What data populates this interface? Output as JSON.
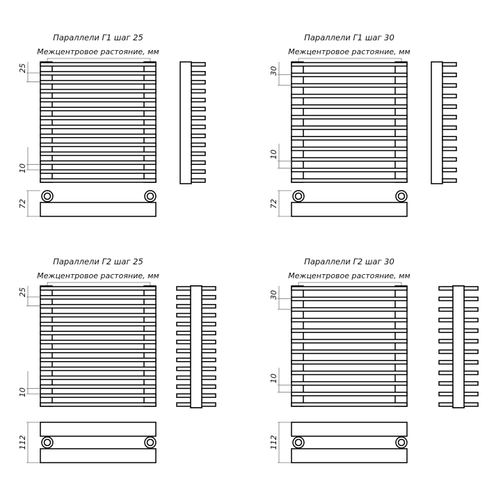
{
  "panels": [
    {
      "title": "Параллели Г1 шаг 25",
      "subtitle": "Межцентровое растояние, мм",
      "pitch": "25",
      "gap": "10",
      "depth": "72",
      "type": "G1",
      "bars": 14
    },
    {
      "title": "Параллели Г1 шаг 30",
      "subtitle": "Межцентровое растояние, мм",
      "pitch": "30",
      "gap": "10",
      "depth": "72",
      "type": "G1",
      "bars": 12
    },
    {
      "title": "Параллели Г2 шаг 25",
      "subtitle": "Межцентровое растояние, мм",
      "pitch": "25",
      "gap": "10",
      "depth": "112",
      "type": "G2",
      "bars": 14
    },
    {
      "title": "Параллели Г2 шаг 30",
      "subtitle": "Межцентровое растояние, мм",
      "pitch": "30",
      "gap": "10",
      "depth": "112",
      "type": "G2",
      "bars": 12
    }
  ],
  "colors": {
    "line": "#000000",
    "dimension": "#777777",
    "background": "#ffffff"
  }
}
